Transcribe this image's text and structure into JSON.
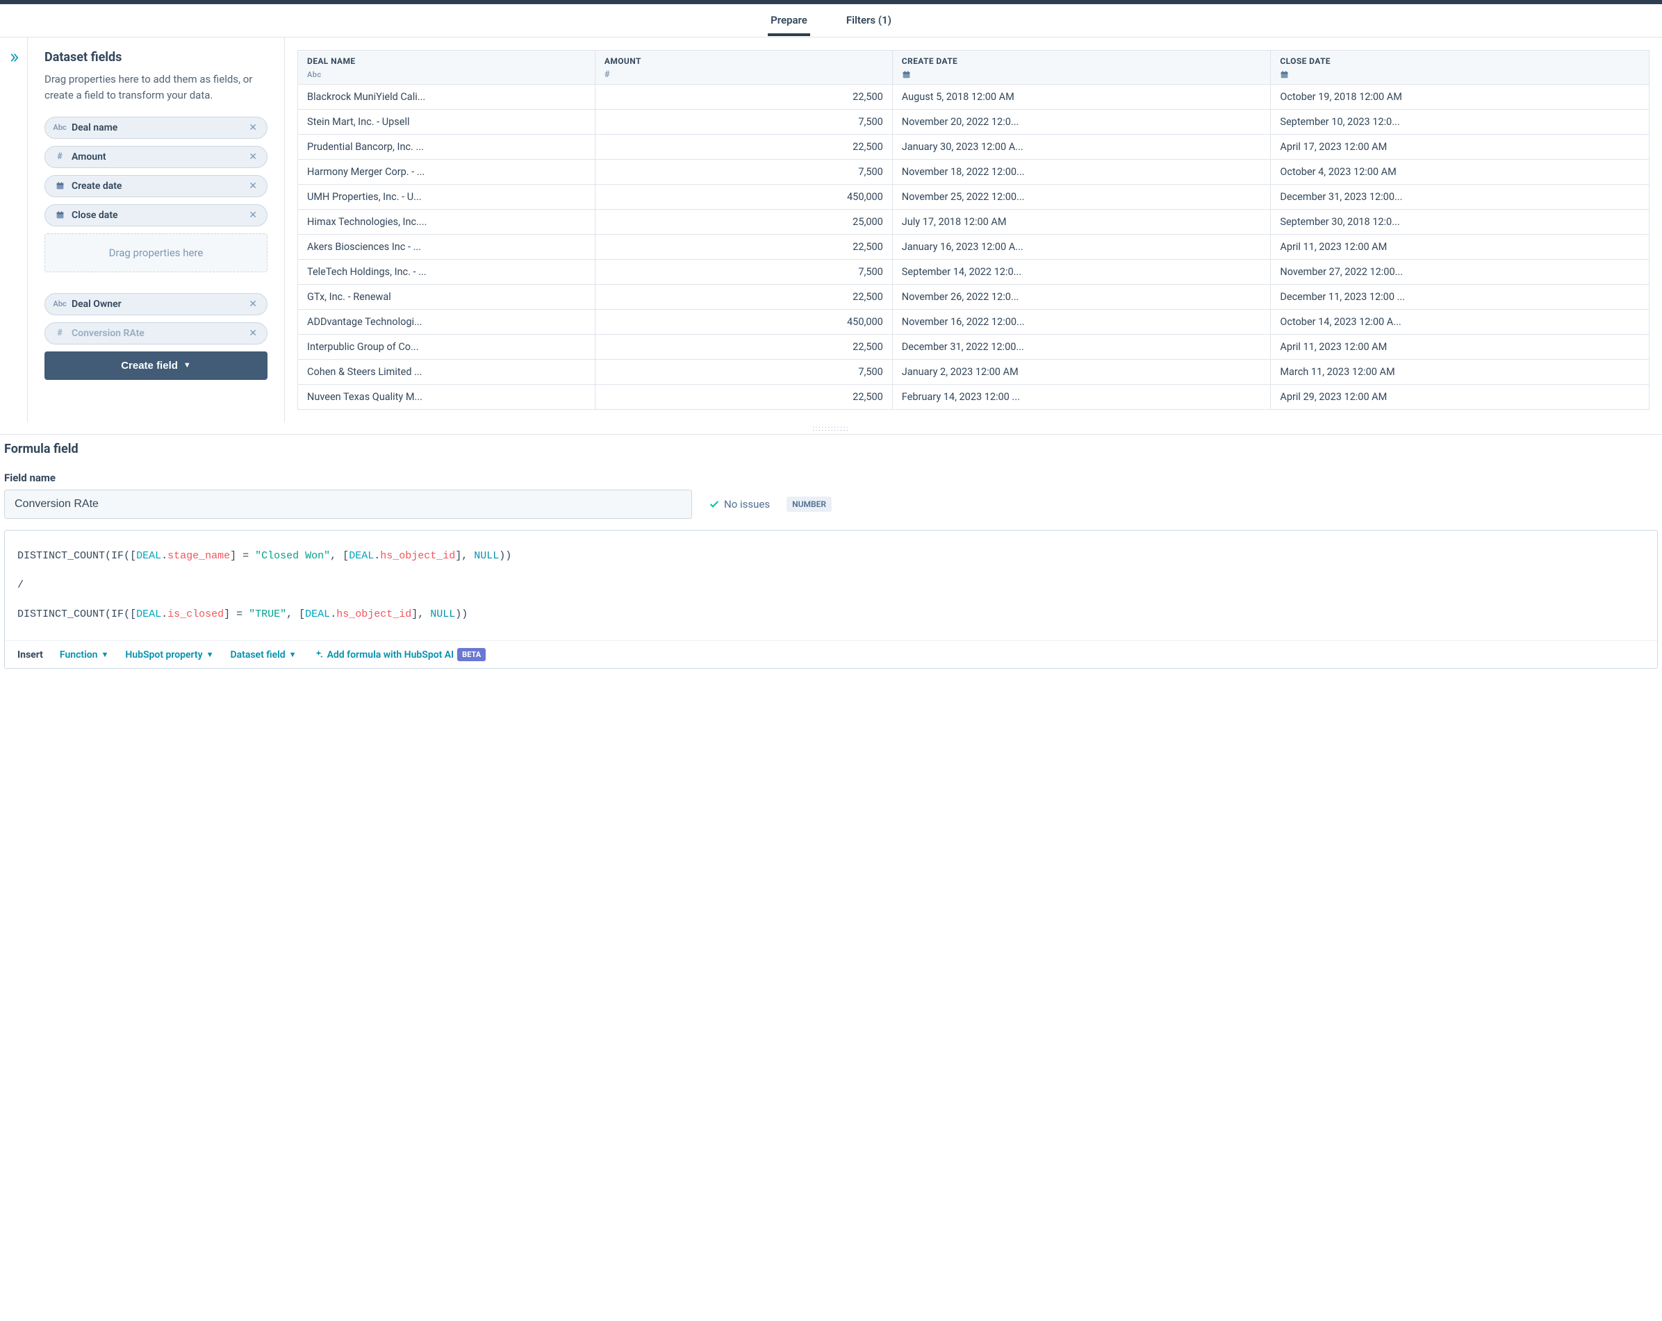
{
  "tabs": {
    "prepare": "Prepare",
    "filters": "Filters (1)"
  },
  "sidebar": {
    "title": "Dataset fields",
    "desc": "Drag properties here to add them as fields, or create a field to transform your data.",
    "dropzone": "Drag properties here",
    "create_btn": "Create field",
    "fields_a": [
      {
        "type": "abc",
        "label": "Deal name"
      },
      {
        "type": "hash",
        "label": "Amount"
      },
      {
        "type": "cal",
        "label": "Create date"
      },
      {
        "type": "cal",
        "label": "Close date"
      }
    ],
    "fields_b": [
      {
        "type": "abc",
        "label": "Deal Owner",
        "faded": false
      },
      {
        "type": "hash",
        "label": "Conversion RAte",
        "faded": true
      }
    ]
  },
  "table": {
    "columns": [
      {
        "label": "DEAL NAME",
        "type": "abc"
      },
      {
        "label": "AMOUNT",
        "type": "hash"
      },
      {
        "label": "CREATE DATE",
        "type": "cal"
      },
      {
        "label": "CLOSE DATE",
        "type": "cal"
      }
    ],
    "col_widths": [
      "22%",
      "22%",
      "28%",
      "28%"
    ],
    "rows": [
      [
        "Blackrock MuniYield Cali...",
        "22,500",
        "August 5, 2018 12:00 AM",
        "October 19, 2018 12:00 AM"
      ],
      [
        "Stein Mart, Inc. - Upsell",
        "7,500",
        "November 20, 2022 12:0...",
        "September 10, 2023 12:0..."
      ],
      [
        "Prudential Bancorp, Inc. ...",
        "22,500",
        "January 30, 2023 12:00 A...",
        "April 17, 2023 12:00 AM"
      ],
      [
        "Harmony Merger Corp. - ...",
        "7,500",
        "November 18, 2022 12:00...",
        "October 4, 2023 12:00 AM"
      ],
      [
        "UMH Properties, Inc. - U...",
        "450,000",
        "November 25, 2022 12:00...",
        "December 31, 2023 12:00..."
      ],
      [
        "Himax Technologies, Inc....",
        "25,000",
        "July 17, 2018 12:00 AM",
        "September 30, 2018 12:0..."
      ],
      [
        "Akers Biosciences Inc - ...",
        "22,500",
        "January 16, 2023 12:00 A...",
        "April 11, 2023 12:00 AM"
      ],
      [
        "TeleTech Holdings, Inc. - ...",
        "7,500",
        "September 14, 2022 12:0...",
        "November 27, 2022 12:00..."
      ],
      [
        "GTx, Inc. - Renewal",
        "22,500",
        "November 26, 2022 12:0...",
        "December 11, 2023 12:00 ..."
      ],
      [
        "ADDvantage Technologi...",
        "450,000",
        "November 16, 2022 12:00...",
        "October 14, 2023 12:00 A..."
      ],
      [
        "Interpublic Group of Co...",
        "22,500",
        "December 31, 2022 12:00...",
        "April 11, 2023 12:00 AM"
      ],
      [
        "Cohen & Steers Limited ...",
        "7,500",
        "January 2, 2023 12:00 AM",
        "March 11, 2023 12:00 AM"
      ],
      [
        "Nuveen Texas Quality M...",
        "22,500",
        "February 14, 2023 12:00 ...",
        "April 29, 2023 12:00 AM"
      ]
    ]
  },
  "formula": {
    "heading": "Formula field",
    "fieldname_label": "Field name",
    "fieldname_value": "Conversion RAte",
    "status_ok": "No issues",
    "type_badge": "NUMBER",
    "code_tokens": [
      [
        {
          "t": "fn",
          "v": "DISTINCT_COUNT"
        },
        {
          "t": "",
          "v": "("
        },
        {
          "t": "fn",
          "v": "IF"
        },
        {
          "t": "",
          "v": "(["
        },
        {
          "t": "obj",
          "v": "DEAL"
        },
        {
          "t": "",
          "v": "."
        },
        {
          "t": "prop",
          "v": "stage_name"
        },
        {
          "t": "",
          "v": "] = "
        },
        {
          "t": "str",
          "v": "\"Closed Won\""
        },
        {
          "t": "",
          "v": ", ["
        },
        {
          "t": "obj",
          "v": "DEAL"
        },
        {
          "t": "",
          "v": "."
        },
        {
          "t": "prop",
          "v": "hs_object_id"
        },
        {
          "t": "",
          "v": "], "
        },
        {
          "t": "kw",
          "v": "NULL"
        },
        {
          "t": "",
          "v": "))"
        }
      ],
      [
        {
          "t": "",
          "v": "/"
        }
      ],
      [
        {
          "t": "fn",
          "v": "DISTINCT_COUNT"
        },
        {
          "t": "",
          "v": "("
        },
        {
          "t": "fn",
          "v": "IF"
        },
        {
          "t": "",
          "v": "(["
        },
        {
          "t": "obj",
          "v": "DEAL"
        },
        {
          "t": "",
          "v": "."
        },
        {
          "t": "prop",
          "v": "is_closed"
        },
        {
          "t": "",
          "v": "] = "
        },
        {
          "t": "str",
          "v": "\"TRUE\""
        },
        {
          "t": "",
          "v": ", ["
        },
        {
          "t": "obj",
          "v": "DEAL"
        },
        {
          "t": "",
          "v": "."
        },
        {
          "t": "prop",
          "v": "hs_object_id"
        },
        {
          "t": "",
          "v": "], "
        },
        {
          "t": "kw",
          "v": "NULL"
        },
        {
          "t": "",
          "v": "))"
        }
      ]
    ],
    "toolbar": {
      "insert": "Insert",
      "function": "Function",
      "hubspot_prop": "HubSpot property",
      "dataset_field": "Dataset field",
      "ai": "Add formula with HubSpot AI",
      "beta": "BETA"
    }
  },
  "icons": {
    "abc": "Abc",
    "hash": "#"
  }
}
